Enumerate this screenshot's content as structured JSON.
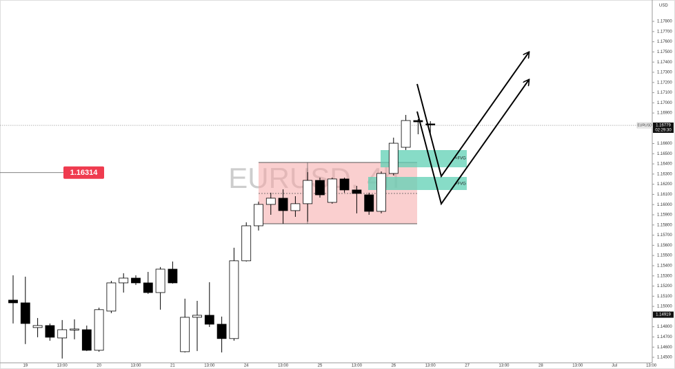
{
  "chart_data": {
    "type": "candlestick",
    "watermark": "EURUSD, 4h",
    "currency": "USD",
    "up_color": "#ffffff",
    "down_color": "#000000",
    "open": [
      1.15062,
      1.15035,
      1.14792,
      1.14812,
      1.1469,
      1.14771,
      1.14771,
      1.14569,
      1.14954,
      1.15231,
      1.15278,
      1.15231,
      1.15136,
      1.15366,
      1.14555,
      1.14893,
      1.14913,
      1.14825,
      1.14684,
      1.15448,
      1.15792,
      1.16002,
      1.16063,
      1.15941,
      1.16009,
      1.16238,
      1.16022,
      1.16252,
      1.16144,
      1.16096,
      1.15934,
      1.16306,
      1.16563,
      1.16826,
      1.16793
    ],
    "high": [
      1.15306,
      1.15292,
      1.14886,
      1.14832,
      1.14866,
      1.14873,
      1.14812,
      1.14988,
      1.15251,
      1.15326,
      1.15306,
      1.15339,
      1.15387,
      1.15441,
      1.15076,
      1.15055,
      1.15238,
      1.149,
      1.15576,
      1.15826,
      1.16029,
      1.16117,
      1.1615,
      1.16083,
      1.16319,
      1.16265,
      1.16265,
      1.16265,
      1.16184,
      1.16117,
      1.16326,
      1.16658,
      1.16881,
      1.1684,
      1.1682
    ],
    "low": [
      1.14832,
      1.1463,
      1.14697,
      1.14663,
      1.14488,
      1.14677,
      1.14562,
      1.14555,
      1.14934,
      1.15136,
      1.15211,
      1.15123,
      1.14968,
      1.15224,
      1.14548,
      1.14562,
      1.14798,
      1.14548,
      1.14663,
      1.15441,
      1.15745,
      1.159,
      1.15813,
      1.1588,
      1.15833,
      1.16069,
      1.16009,
      1.16117,
      1.15914,
      1.159,
      1.15914,
      1.16286,
      1.16536,
      1.16691,
      1.16691
    ],
    "close": [
      1.15035,
      1.14832,
      1.14812,
      1.14697,
      1.14771,
      1.14778,
      1.14569,
      1.14968,
      1.15231,
      1.15278,
      1.15231,
      1.15136,
      1.15366,
      1.15231,
      1.14893,
      1.14913,
      1.14825,
      1.14684,
      1.15448,
      1.15792,
      1.16002,
      1.16063,
      1.15941,
      1.16009,
      1.16238,
      1.16096,
      1.16252,
      1.16144,
      1.1611,
      1.15934,
      1.16306,
      1.16603,
      1.16826,
      1.16813,
      1.16786
    ],
    "x_labels": [
      "19",
      "13:00",
      "20",
      "13:00",
      "21",
      "13:00",
      "24",
      "13:00",
      "25",
      "13:00",
      "26",
      "13:00",
      "27",
      "13:00",
      "28",
      "13:00",
      "Jul",
      "13:00"
    ],
    "ylim": [
      1.14446,
      1.1801
    ],
    "yticks": [
      {
        "value": 1.178,
        "label": "1.17800"
      },
      {
        "value": 1.177,
        "label": "1.17700"
      },
      {
        "value": 1.176,
        "label": "1.17600"
      },
      {
        "value": 1.175,
        "label": "1.17500"
      },
      {
        "value": 1.174,
        "label": "1.17400"
      },
      {
        "value": 1.173,
        "label": "1.17300"
      },
      {
        "value": 1.172,
        "label": "1.17200"
      },
      {
        "value": 1.171,
        "label": "1.17100"
      },
      {
        "value": 1.17,
        "label": "1.17000"
      },
      {
        "value": 1.169,
        "label": "1.16900"
      },
      {
        "value": 1.166,
        "label": "1.16600"
      },
      {
        "value": 1.165,
        "label": "1.16500"
      },
      {
        "value": 1.164,
        "label": "1.16400"
      },
      {
        "value": 1.163,
        "label": "1.16300"
      },
      {
        "value": 1.162,
        "label": "1.16200"
      },
      {
        "value": 1.161,
        "label": "1.16100"
      },
      {
        "value": 1.16,
        "label": "1.16000"
      },
      {
        "value": 1.159,
        "label": "1.15900"
      },
      {
        "value": 1.158,
        "label": "1.15800"
      },
      {
        "value": 1.157,
        "label": "1.15700"
      },
      {
        "value": 1.156,
        "label": "1.15600"
      },
      {
        "value": 1.155,
        "label": "1.15500"
      },
      {
        "value": 1.154,
        "label": "1.15400"
      },
      {
        "value": 1.153,
        "label": "1.15300"
      },
      {
        "value": 1.152,
        "label": "1.15200"
      },
      {
        "value": 1.151,
        "label": "1.15100"
      },
      {
        "value": 1.15,
        "label": "1.15000"
      },
      {
        "value": 1.148,
        "label": "1.14800"
      },
      {
        "value": 1.147,
        "label": "1.14700"
      },
      {
        "value": 1.146,
        "label": "1.14600"
      },
      {
        "value": 1.145,
        "label": "1.14500"
      }
    ],
    "price_line": {
      "value": 1.16314,
      "label": "1.16314"
    },
    "current_price": {
      "symbol": "EURUSD",
      "value": 1.16779,
      "label": "1.16779",
      "countdown": "02:29:30"
    },
    "marked_price": {
      "value": 1.14919,
      "label": "1.14919"
    },
    "zone_labels": [
      "+FVG",
      "+FVG"
    ]
  }
}
